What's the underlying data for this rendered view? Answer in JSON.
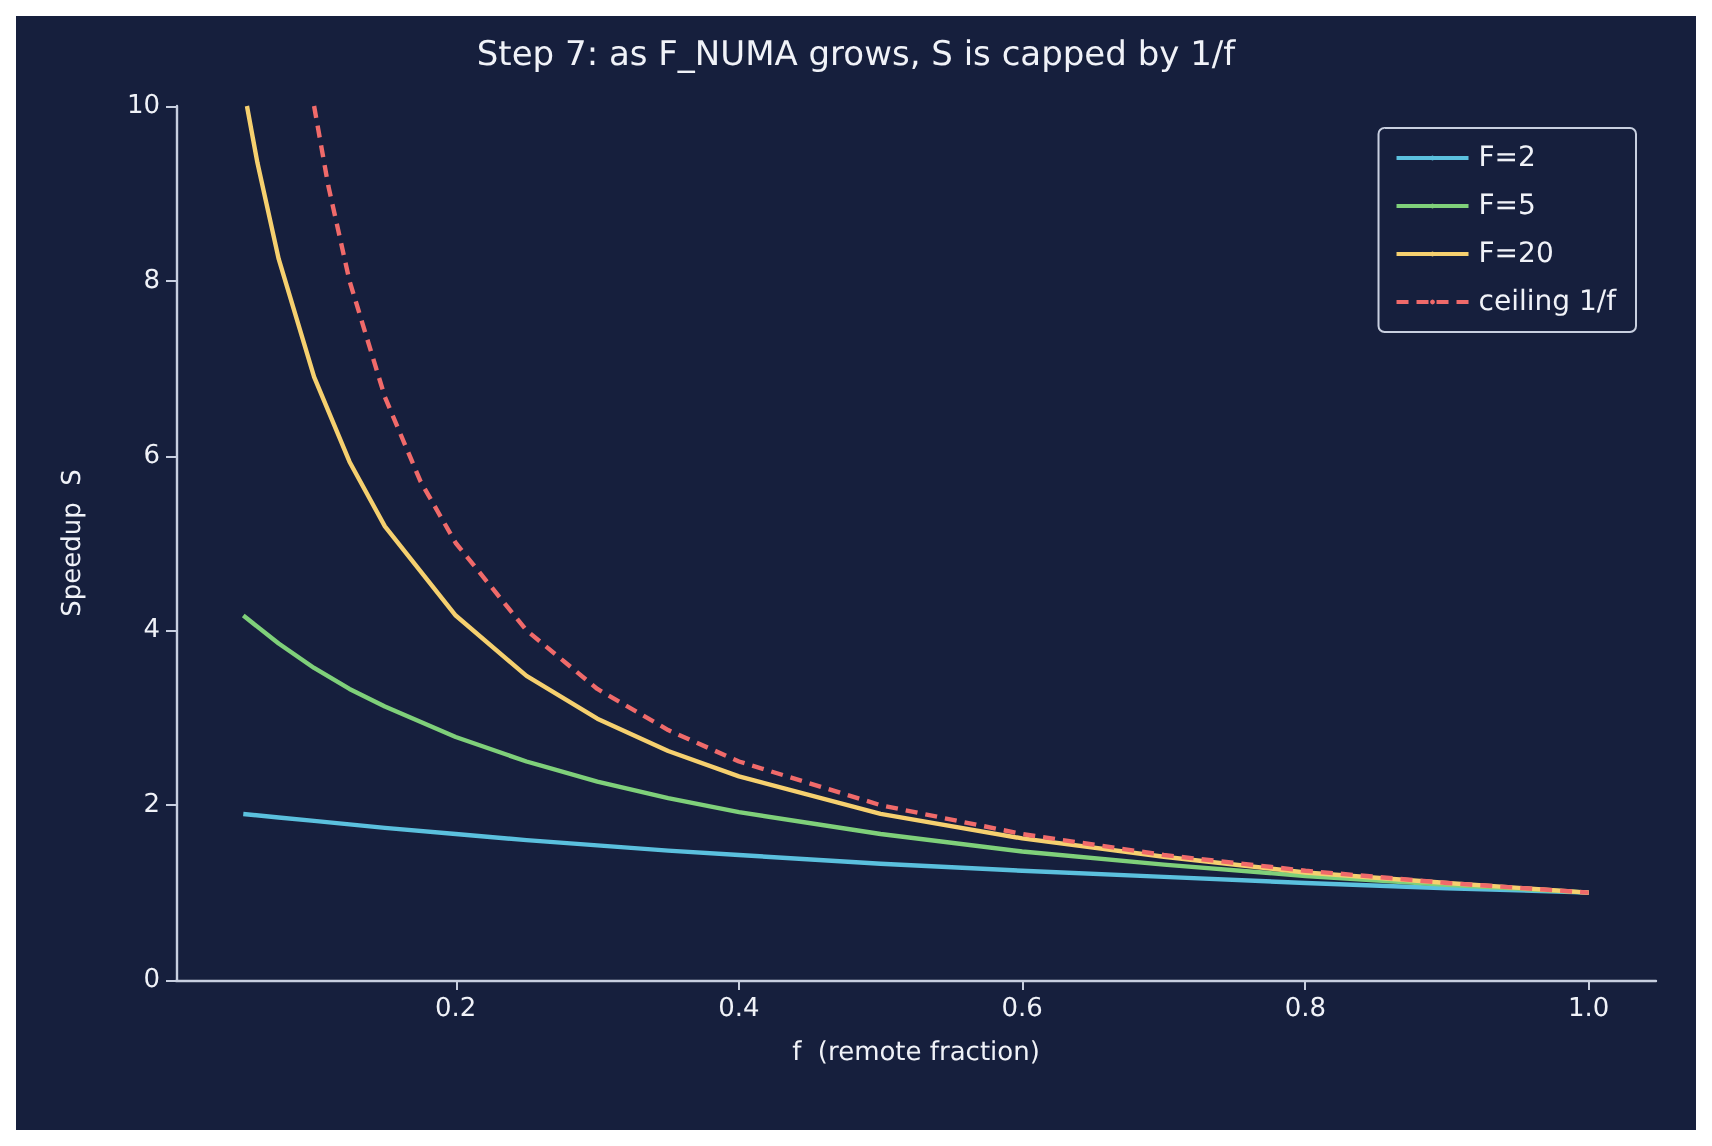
{
  "chart_data": {
    "type": "line",
    "title": "Step 7: as F_NUMA grows, S is capped by 1/f",
    "xlabel": "f  (remote fraction)",
    "ylabel": "Speedup  S",
    "xlim": [
      0.0025,
      1.0475
    ],
    "xticks": [
      0.2,
      0.4,
      0.6,
      0.8,
      {
        "value": 1,
        "label": "1.0"
      }
    ],
    "ylim": [
      0,
      10
    ],
    "yticks": [
      0,
      2,
      4,
      6,
      8,
      10
    ],
    "grid": false,
    "legend": "top right",
    "marker": "none",
    "line_style": "solid",
    "series": [
      {
        "name": "F=2",
        "color": "#5bc0de",
        "x": [
          0.05,
          0.075,
          0.1,
          0.125,
          0.15,
          0.2,
          0.25,
          0.3,
          0.35,
          0.4,
          0.5,
          0.6,
          0.7,
          0.8,
          0.9,
          1.0
        ],
        "values": [
          1.9,
          1.86,
          1.82,
          1.78,
          1.74,
          1.67,
          1.6,
          1.54,
          1.48,
          1.43,
          1.33,
          1.25,
          1.18,
          1.11,
          1.05,
          1.0
        ]
      },
      {
        "name": "F=5",
        "color": "#7fd07a",
        "x": [
          0.05,
          0.075,
          0.1,
          0.125,
          0.15,
          0.2,
          0.25,
          0.3,
          0.35,
          0.4,
          0.5,
          0.6,
          0.7,
          0.8,
          0.9,
          1.0
        ],
        "values": [
          4.17,
          3.85,
          3.57,
          3.33,
          3.13,
          2.78,
          2.5,
          2.27,
          2.08,
          1.92,
          1.67,
          1.47,
          1.32,
          1.19,
          1.09,
          1.0
        ]
      },
      {
        "name": "F=20",
        "color": "#f6d06f",
        "x": [
          0.0526,
          0.06,
          0.075,
          0.1,
          0.125,
          0.15,
          0.2,
          0.25,
          0.3,
          0.35,
          0.4,
          0.5,
          0.6,
          0.7,
          0.8,
          0.9,
          1.0
        ],
        "values": [
          10,
          9.35,
          8.25,
          6.9,
          5.93,
          5.19,
          4.17,
          3.48,
          2.99,
          2.62,
          2.33,
          1.9,
          1.62,
          1.41,
          1.23,
          1.11,
          1.0
        ]
      },
      {
        "name": "ceiling 1/f",
        "color": "#f06a6a",
        "line_style": "dashed",
        "x": [
          0.1,
          0.11,
          0.125,
          0.15,
          0.175,
          0.2,
          0.25,
          0.3,
          0.35,
          0.4,
          0.5,
          0.6,
          0.7,
          0.8,
          0.9,
          1.0
        ],
        "values": [
          10,
          9.09,
          8,
          6.67,
          5.71,
          5,
          4,
          3.33,
          2.86,
          2.5,
          2,
          1.67,
          1.43,
          1.25,
          1.11,
          1.0
        ]
      }
    ]
  }
}
